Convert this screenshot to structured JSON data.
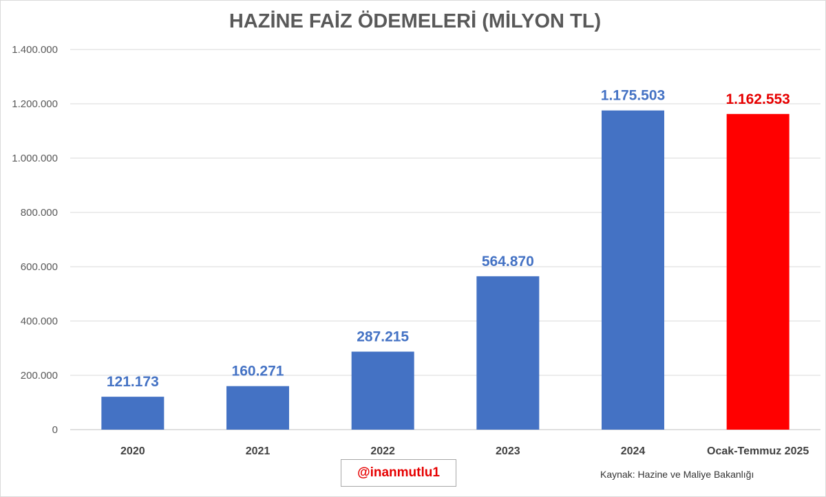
{
  "chart_data": {
    "type": "bar",
    "title": "HAZİNE FAİZ ÖDEMELERİ (MİLYON TL)",
    "categories": [
      "2020",
      "2021",
      "2022",
      "2023",
      "2024",
      "Ocak-Temmuz 2025"
    ],
    "values": [
      121173,
      160271,
      287215,
      564870,
      1175503,
      1162553
    ],
    "data_labels": [
      "121.173",
      "160.271",
      "287.215",
      "564.870",
      "1.175.503",
      "1.162.553"
    ],
    "ylim": [
      0,
      1400000
    ],
    "yticks": [
      0,
      200000,
      400000,
      600000,
      800000,
      1000000,
      1200000,
      1400000
    ],
    "ytick_labels": [
      "0",
      "200.000",
      "400.000",
      "600.000",
      "800.000",
      "1.000.000",
      "1.200.000",
      "1.400.000"
    ],
    "grid": true,
    "colors": {
      "bar": "#4472c4",
      "highlight_bar": "#ff0000",
      "label": "#4472c4",
      "highlight_label": "#e60000"
    },
    "highlight_index": 5
  },
  "watermark": "@inanmutlu1",
  "source": "Kaynak: Hazine ve Maliye Bakanlığı"
}
